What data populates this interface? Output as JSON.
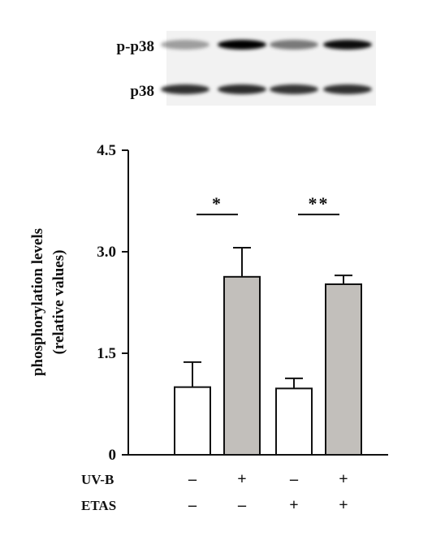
{
  "blot": {
    "rows": [
      {
        "label": "p-p38",
        "intensities": [
          0.35,
          1.0,
          0.5,
          0.95
        ]
      },
      {
        "label": "p38",
        "intensities": [
          0.8,
          0.82,
          0.78,
          0.8
        ]
      }
    ]
  },
  "chart_data": {
    "type": "bar",
    "ylabel": "phosphorylation levels",
    "ylabel2": "(relative values)",
    "ylim": [
      0,
      4.5
    ],
    "yticks": [
      "0",
      "1.5",
      "3.0",
      "4.5"
    ],
    "ytick_values": [
      0,
      1.5,
      3.0,
      4.5
    ],
    "values": [
      1.0,
      2.63,
      0.98,
      2.52
    ],
    "errors": [
      0.37,
      0.43,
      0.15,
      0.13
    ],
    "bar_colors": [
      "#ffffff",
      "#c2bfbb",
      "#ffffff",
      "#c2bfbb"
    ],
    "conditions": [
      {
        "label": "UV-B",
        "signs": [
          "–",
          "+",
          "–",
          "+"
        ]
      },
      {
        "label": "ETAS",
        "signs": [
          "–",
          "–",
          "+",
          "+"
        ]
      }
    ],
    "significance": [
      {
        "from": 0,
        "to": 1,
        "label": "*",
        "y": 3.55
      },
      {
        "from": 2,
        "to": 3,
        "label": "**",
        "y": 3.55
      }
    ]
  }
}
